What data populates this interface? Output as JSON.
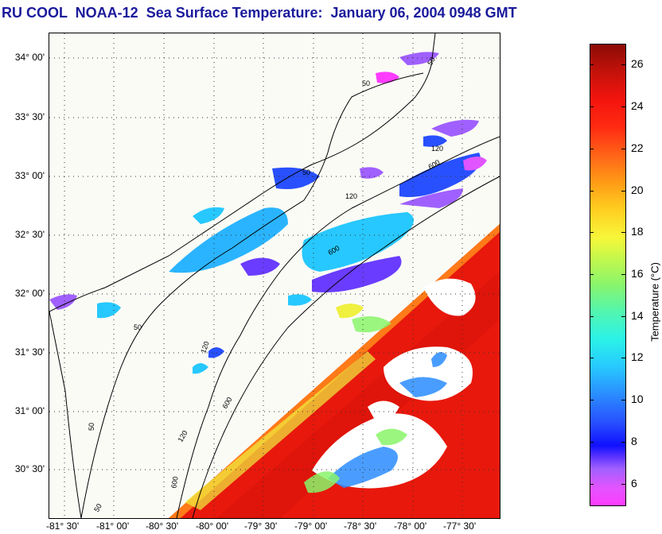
{
  "title": "RU COOL  NOAA-12  Sea Surface Temperature:  January 06, 2004 0948 GMT",
  "latitude_labels": [
    "34° 00'",
    "33° 30'",
    "33° 00'",
    "32° 30'",
    "32° 00'",
    "31° 30'",
    "31° 00'",
    "30° 30'"
  ],
  "longitude_labels": [
    "-81° 30'",
    "-81° 00'",
    "-80° 30'",
    "-80° 00'",
    "-79° 30'",
    "-79° 00'",
    "-78° 30'",
    "-78° 00'",
    "-77° 30'"
  ],
  "isobath_labels": [
    "50",
    "50",
    "50",
    "50",
    "50",
    "50",
    "120",
    "120",
    "120",
    "120",
    "600",
    "600",
    "600",
    "600"
  ],
  "colorbar": {
    "label": "Temperature (°C)",
    "ticks": [
      "26",
      "24",
      "22",
      "20",
      "18",
      "16",
      "14",
      "12",
      "10",
      "8",
      "6"
    ],
    "range": [
      5,
      27
    ]
  },
  "colors": {
    "title": "#1a1a9c",
    "land": "#fbfbf6",
    "warm_stream": "#f0180c",
    "cold_shelf": "#2ab4ff",
    "cloud_mask": "#ffffff"
  }
}
